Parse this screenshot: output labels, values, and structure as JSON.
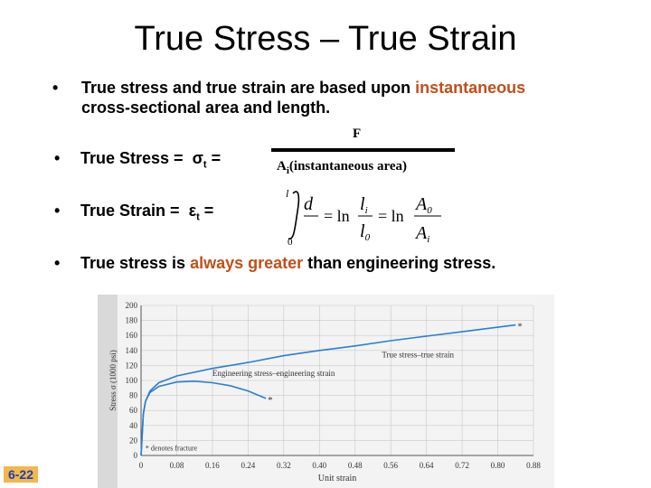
{
  "slide": {
    "title": "True Stress – True Strain",
    "bullet1": {
      "prefix": "True stress and true strain are based upon ",
      "highlight": "instantaneous",
      "suffix": "cross-sectional area and length."
    },
    "stress_formula": {
      "label": "True Stress =",
      "symbol": "σ",
      "subscript": "t",
      "equals": "=",
      "numerator": "F",
      "denominator_symbol": "A",
      "denominator_sub": "i",
      "denominator_text": "(instantaneous area)"
    },
    "strain_formula": {
      "label": "True Strain =",
      "symbol": "ε",
      "subscript": "t",
      "equals": "=",
      "integral_upper": "l",
      "integral_lower": "0",
      "integrand": "d",
      "ln1": "= ln",
      "frac1_num": "l",
      "frac1_num_sub": "i",
      "frac1_den": "l",
      "frac1_den_sub": "0",
      "ln2": "= ln",
      "frac2_num": "A",
      "frac2_num_sub": "0",
      "frac2_den": "A",
      "frac2_den_sub": "i"
    },
    "bullet4": {
      "prefix": "True stress is ",
      "highlight": "always greater",
      "suffix": " than engineering stress."
    },
    "slide_number": "6-22"
  },
  "chart_data": {
    "type": "line",
    "xlabel": "Unit strain",
    "ylabel": "Stress σ (1000 psi)",
    "x_ticks": [
      "0",
      "0.08",
      "0.16",
      "0.24",
      "0.32",
      "0.40",
      "0.48",
      "0.56",
      "0.64",
      "0.72",
      "0.80",
      "0.88"
    ],
    "y_ticks": [
      "0",
      "20",
      "40",
      "60",
      "80",
      "100",
      "120",
      "140",
      "160",
      "180",
      "200"
    ],
    "xlim": [
      0,
      0.88
    ],
    "ylim": [
      0,
      200
    ],
    "series": [
      {
        "name": "True stress–true strain",
        "x": [
          0,
          0.005,
          0.01,
          0.02,
          0.04,
          0.08,
          0.16,
          0.24,
          0.32,
          0.4,
          0.48,
          0.56,
          0.64,
          0.72,
          0.8,
          0.84
        ],
        "y": [
          0,
          55,
          72,
          86,
          97,
          106,
          116,
          124,
          133,
          140,
          146,
          153,
          159,
          165,
          171,
          174
        ]
      },
      {
        "name": "Engineering stress–engineering strain",
        "x": [
          0,
          0.005,
          0.01,
          0.02,
          0.04,
          0.08,
          0.12,
          0.16,
          0.2,
          0.24,
          0.28
        ],
        "y": [
          0,
          55,
          72,
          84,
          92,
          98,
          99,
          97,
          93,
          86,
          76
        ]
      }
    ],
    "annotation": "* denotes fracture",
    "fracture_marker": "*"
  }
}
